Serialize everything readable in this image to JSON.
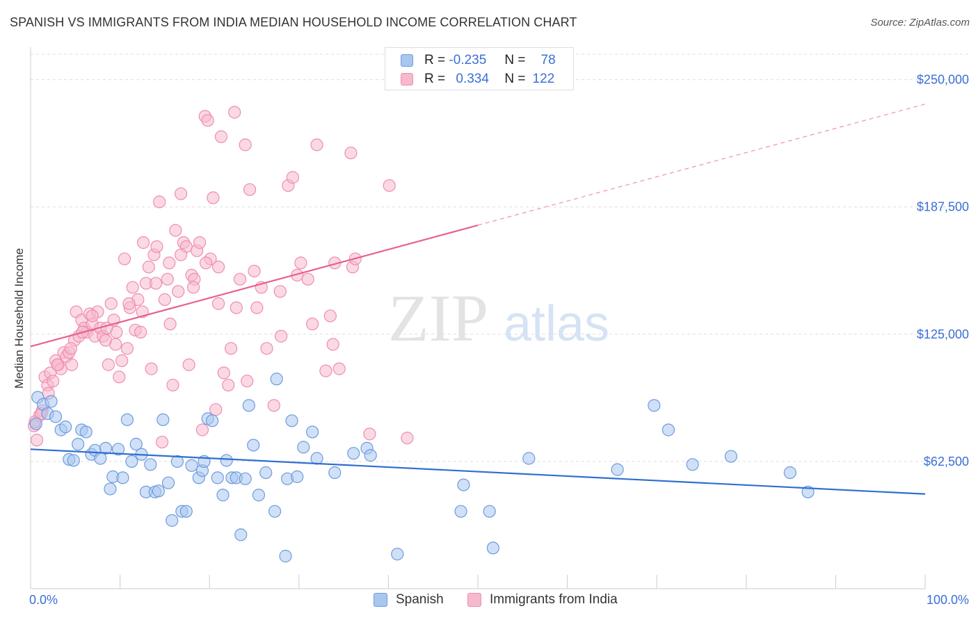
{
  "title": "SPANISH VS IMMIGRANTS FROM INDIA MEDIAN HOUSEHOLD INCOME CORRELATION CHART",
  "source": "Source: ZipAtlas.com",
  "watermark": {
    "zip": "ZIP",
    "atlas": "atlas"
  },
  "legend": {
    "r_label": "R =",
    "n_label": "N =",
    "rows": [
      {
        "r": "-0.235",
        "n": "78",
        "color": "#6d9be0"
      },
      {
        "r": "0.334",
        "n": "122",
        "color": "#f08cae"
      }
    ]
  },
  "bottom_legend": [
    {
      "label": "Spanish",
      "color": "#6d9be0"
    },
    {
      "label": "Immigrants from India",
      "color": "#f08cae"
    }
  ],
  "colors": {
    "blue_fill": "#a9c6ee",
    "blue_stroke": "#6d9be0",
    "blue_line": "#2f6fd0",
    "pink_fill": "#f6b9cd",
    "pink_stroke": "#f08cae",
    "pink_line": "#e8608f",
    "axis_label": "#3b6fd6",
    "grid": "#dddddd"
  },
  "chart_data": {
    "type": "scatter",
    "title": "SPANISH VS IMMIGRANTS FROM INDIA MEDIAN HOUSEHOLD INCOME CORRELATION CHART",
    "xlabel": "",
    "ylabel": "Median Household Income",
    "xlim": [
      0,
      100
    ],
    "ylim": [
      0,
      262500
    ],
    "x_tick_labels": [
      "0.0%",
      "100.0%"
    ],
    "y_ticks": [
      62500,
      125000,
      187500,
      250000
    ],
    "y_tick_labels": [
      "$62,500",
      "$125,000",
      "$187,500",
      "$250,000"
    ],
    "grid": true,
    "legend_position": "top-center",
    "series": [
      {
        "name": "Spanish",
        "r": -0.235,
        "n": 78,
        "trend": {
          "x": [
            0,
            100
          ],
          "y": [
            68500,
            46500
          ],
          "dashed_from": null
        },
        "points": [
          [
            0.8,
            94000
          ],
          [
            1.4,
            90500
          ],
          [
            1.9,
            86000
          ],
          [
            2.3,
            92000
          ],
          [
            2.8,
            84500
          ],
          [
            3.4,
            78000
          ],
          [
            3.9,
            79500
          ],
          [
            4.3,
            63500
          ],
          [
            4.8,
            63000
          ],
          [
            5.3,
            71000
          ],
          [
            5.7,
            78000
          ],
          [
            6.2,
            77000
          ],
          [
            6.8,
            66000
          ],
          [
            7.2,
            68000
          ],
          [
            7.8,
            64000
          ],
          [
            8.4,
            69000
          ],
          [
            8.9,
            49000
          ],
          [
            9.2,
            55000
          ],
          [
            9.8,
            68500
          ],
          [
            10.3,
            54500
          ],
          [
            10.8,
            83000
          ],
          [
            11.3,
            62500
          ],
          [
            11.8,
            71000
          ],
          [
            12.4,
            66000
          ],
          [
            12.9,
            47500
          ],
          [
            13.4,
            61000
          ],
          [
            13.9,
            47500
          ],
          [
            14.3,
            48000
          ],
          [
            14.8,
            83000
          ],
          [
            15.4,
            52000
          ],
          [
            15.8,
            33500
          ],
          [
            16.4,
            62500
          ],
          [
            16.9,
            38000
          ],
          [
            17.4,
            38000
          ],
          [
            18.0,
            60500
          ],
          [
            18.8,
            54500
          ],
          [
            19.2,
            58000
          ],
          [
            19.4,
            62500
          ],
          [
            19.8,
            83500
          ],
          [
            20.3,
            82500
          ],
          [
            20.9,
            54500
          ],
          [
            21.5,
            46000
          ],
          [
            21.9,
            63000
          ],
          [
            22.5,
            54500
          ],
          [
            23.0,
            54500
          ],
          [
            23.5,
            26500
          ],
          [
            24.0,
            54000
          ],
          [
            24.4,
            90000
          ],
          [
            24.9,
            70500
          ],
          [
            25.5,
            46000
          ],
          [
            26.3,
            57000
          ],
          [
            27.3,
            38000
          ],
          [
            27.5,
            103000
          ],
          [
            28.5,
            16000
          ],
          [
            28.7,
            54000
          ],
          [
            29.2,
            82500
          ],
          [
            29.8,
            55000
          ],
          [
            30.5,
            69500
          ],
          [
            31.5,
            77000
          ],
          [
            32.0,
            64000
          ],
          [
            34.0,
            57000
          ],
          [
            36.1,
            66500
          ],
          [
            37.6,
            69000
          ],
          [
            38.0,
            65500
          ],
          [
            41.0,
            17000
          ],
          [
            48.1,
            38000
          ],
          [
            48.4,
            51000
          ],
          [
            51.3,
            38000
          ],
          [
            51.7,
            20000
          ],
          [
            55.7,
            64000
          ],
          [
            65.6,
            58500
          ],
          [
            69.7,
            90000
          ],
          [
            71.3,
            78000
          ],
          [
            74.0,
            61000
          ],
          [
            78.3,
            65000
          ],
          [
            84.9,
            57000
          ],
          [
            86.9,
            47500
          ],
          [
            0.6,
            81000
          ]
        ]
      },
      {
        "name": "Immigrants from India",
        "r": 0.334,
        "n": 122,
        "trend": {
          "x": [
            0,
            100
          ],
          "y": [
            119000,
            238000
          ],
          "dashed_from": 50
        },
        "points": [
          [
            0.4,
            80000
          ],
          [
            0.7,
            73000
          ],
          [
            1.0,
            85000
          ],
          [
            1.3,
            87500
          ],
          [
            1.6,
            104000
          ],
          [
            1.9,
            100000
          ],
          [
            2.2,
            106000
          ],
          [
            2.5,
            102000
          ],
          [
            2.8,
            112000
          ],
          [
            3.1,
            110000
          ],
          [
            3.4,
            108000
          ],
          [
            3.7,
            116000
          ],
          [
            4.0,
            114000
          ],
          [
            4.3,
            116000
          ],
          [
            4.6,
            110000
          ],
          [
            4.9,
            122000
          ],
          [
            5.1,
            136000
          ],
          [
            5.4,
            124000
          ],
          [
            5.7,
            132000
          ],
          [
            6.0,
            128000
          ],
          [
            6.3,
            126000
          ],
          [
            6.6,
            135000
          ],
          [
            6.9,
            130000
          ],
          [
            7.2,
            124000
          ],
          [
            7.5,
            136000
          ],
          [
            7.8,
            128000
          ],
          [
            8.1,
            124000
          ],
          [
            8.4,
            122000
          ],
          [
            8.7,
            110000
          ],
          [
            9.0,
            140000
          ],
          [
            9.3,
            132000
          ],
          [
            9.6,
            126000
          ],
          [
            9.9,
            104000
          ],
          [
            10.2,
            112000
          ],
          [
            10.5,
            162000
          ],
          [
            10.8,
            118000
          ],
          [
            11.1,
            138000
          ],
          [
            11.4,
            148000
          ],
          [
            11.7,
            127000
          ],
          [
            12.0,
            142000
          ],
          [
            12.3,
            126000
          ],
          [
            12.6,
            170000
          ],
          [
            12.9,
            150000
          ],
          [
            13.2,
            158000
          ],
          [
            13.5,
            108000
          ],
          [
            13.8,
            164000
          ],
          [
            14.1,
            168000
          ],
          [
            14.4,
            190000
          ],
          [
            14.7,
            72000
          ],
          [
            15.0,
            142000
          ],
          [
            15.3,
            152000
          ],
          [
            15.6,
            130000
          ],
          [
            15.9,
            100000
          ],
          [
            16.2,
            176000
          ],
          [
            16.5,
            146000
          ],
          [
            16.8,
            194000
          ],
          [
            17.1,
            170000
          ],
          [
            17.4,
            168000
          ],
          [
            17.7,
            110000
          ],
          [
            18.0,
            154000
          ],
          [
            18.3,
            152000
          ],
          [
            18.6,
            166000
          ],
          [
            18.9,
            170000
          ],
          [
            19.2,
            78000
          ],
          [
            19.5,
            232000
          ],
          [
            19.8,
            230000
          ],
          [
            20.1,
            162000
          ],
          [
            20.4,
            192000
          ],
          [
            20.7,
            88000
          ],
          [
            21.0,
            158000
          ],
          [
            21.3,
            222000
          ],
          [
            21.6,
            106000
          ],
          [
            22.4,
            118000
          ],
          [
            22.8,
            234000
          ],
          [
            23.4,
            152000
          ],
          [
            24.0,
            218000
          ],
          [
            24.2,
            102000
          ],
          [
            24.5,
            196000
          ],
          [
            25.0,
            156000
          ],
          [
            25.3,
            138000
          ],
          [
            26.4,
            118000
          ],
          [
            27.2,
            90000
          ],
          [
            28.0,
            124000
          ],
          [
            28.8,
            198000
          ],
          [
            29.3,
            202000
          ],
          [
            29.8,
            154000
          ],
          [
            31.0,
            152000
          ],
          [
            32.0,
            218000
          ],
          [
            33.0,
            107000
          ],
          [
            33.5,
            134000
          ],
          [
            33.8,
            120000
          ],
          [
            34.5,
            108000
          ],
          [
            35.8,
            214000
          ],
          [
            36.0,
            158000
          ],
          [
            36.3,
            162000
          ],
          [
            37.9,
            76000
          ],
          [
            40.1,
            198000
          ],
          [
            42.1,
            74000
          ],
          [
            0.5,
            82000
          ],
          [
            1.2,
            86000
          ],
          [
            2.0,
            96000
          ],
          [
            3.0,
            110000
          ],
          [
            4.5,
            118000
          ],
          [
            5.8,
            126000
          ],
          [
            6.9,
            134000
          ],
          [
            8.5,
            128000
          ],
          [
            9.5,
            120000
          ],
          [
            11.0,
            140000
          ],
          [
            12.5,
            136000
          ],
          [
            14.0,
            150000
          ],
          [
            15.5,
            160000
          ],
          [
            16.8,
            164000
          ],
          [
            18.2,
            148000
          ],
          [
            19.6,
            160000
          ],
          [
            21.0,
            140000
          ],
          [
            22.1,
            100000
          ],
          [
            23.0,
            138000
          ],
          [
            25.8,
            148000
          ],
          [
            27.9,
            146000
          ],
          [
            30.2,
            160000
          ],
          [
            31.5,
            130000
          ],
          [
            34.0,
            160000
          ]
        ]
      }
    ]
  }
}
